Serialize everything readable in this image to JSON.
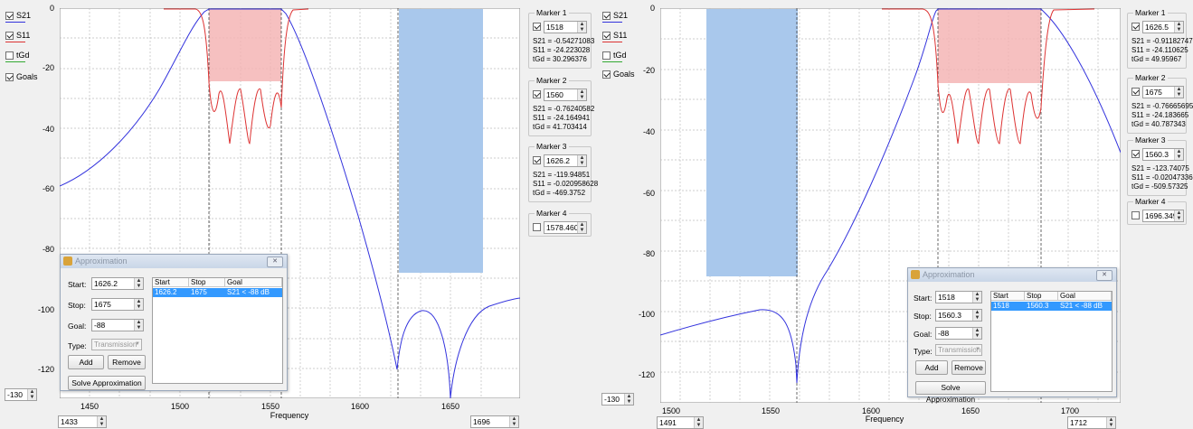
{
  "legend": {
    "s21": "S21",
    "s11": "S11",
    "tgd": "tGd",
    "goals": "Goals"
  },
  "colors": {
    "s21": "#3333dd",
    "s11": "#dd3333",
    "tgd": "#33aa33",
    "pass_fill": "#f5b5b5",
    "stop_fill": "#a9c8ec"
  },
  "axis": {
    "x_title": "Frequency"
  },
  "panel1": {
    "y_ticks": [
      "0",
      "-20",
      "-40",
      "-60",
      "-80",
      "-100",
      "-120"
    ],
    "x_ticks": [
      "1450",
      "1500",
      "1550",
      "1600",
      "1650"
    ],
    "ymin_value": "-130",
    "xmin_value": "1433",
    "xmax_value": "1696",
    "markers": [
      {
        "title": "Marker 1",
        "freq": "1518",
        "s21": "S21 = -0.54271083",
        "s11": "S11 = -24.223028",
        "tgd": "tGd = 30.296376"
      },
      {
        "title": "Marker 2",
        "freq": "1560",
        "s21": "S21 = -0.76240582",
        "s11": "S11 = -24.164941",
        "tgd": "tGd = 41.703414"
      },
      {
        "title": "Marker 3",
        "freq": "1626.2",
        "s21": "S21 = -119.94851",
        "s11": "S11 = -0.020958628",
        "tgd": "tGd = -469.3752"
      },
      {
        "title": "Marker 4",
        "freq": "1578.4609"
      }
    ],
    "dialog": {
      "title": "Approximation",
      "start_label": "Start:",
      "start": "1626.2",
      "stop_label": "Stop:",
      "stop": "1675",
      "goal_label": "Goal:",
      "goal": "-88",
      "type_label": "Type:",
      "type": "Transmission",
      "add": "Add",
      "remove": "Remove",
      "solve": "Solve Approximation",
      "columns": [
        "Start",
        "Stop",
        "Goal"
      ],
      "row": [
        "1626.2",
        "1675",
        "S21 < -88 dB"
      ]
    }
  },
  "panel2": {
    "y_ticks": [
      "0",
      "-20",
      "-40",
      "-60",
      "-80",
      "-100",
      "-120"
    ],
    "x_ticks": [
      "1500",
      "1550",
      "1600",
      "1650",
      "1700"
    ],
    "ymin_value": "-130",
    "xmin_value": "1491",
    "xmax_value": "1712",
    "markers": [
      {
        "title": "Marker 1",
        "freq": "1626.5",
        "s21": "S21 = -0.91182747",
        "s11": "S11 = -24.110625",
        "tgd": "tGd = 49.95967"
      },
      {
        "title": "Marker 2",
        "freq": "1675",
        "s21": "S21 = -0.76665695",
        "s11": "S11 = -24.183665",
        "tgd": "tGd = 40.787343"
      },
      {
        "title": "Marker 3",
        "freq": "1560.3",
        "s21": "S21 = -123.74075",
        "s11": "S11 = -0.020473366",
        "tgd": "tGd = -509.57325"
      },
      {
        "title": "Marker 4",
        "freq": "1696.3492"
      }
    ],
    "dialog": {
      "title": "Approximation",
      "start_label": "Start:",
      "start": "1518",
      "stop_label": "Stop:",
      "stop": "1560.3",
      "goal_label": "Goal:",
      "goal": "-88",
      "type_label": "Type:",
      "type": "Transmission",
      "add": "Add",
      "remove": "Remove",
      "solve": "Solve Approximation",
      "columns": [
        "Start",
        "Stop",
        "Goal"
      ],
      "row": [
        "1518",
        "1560.3",
        "S21 < -88 dB"
      ]
    }
  }
}
